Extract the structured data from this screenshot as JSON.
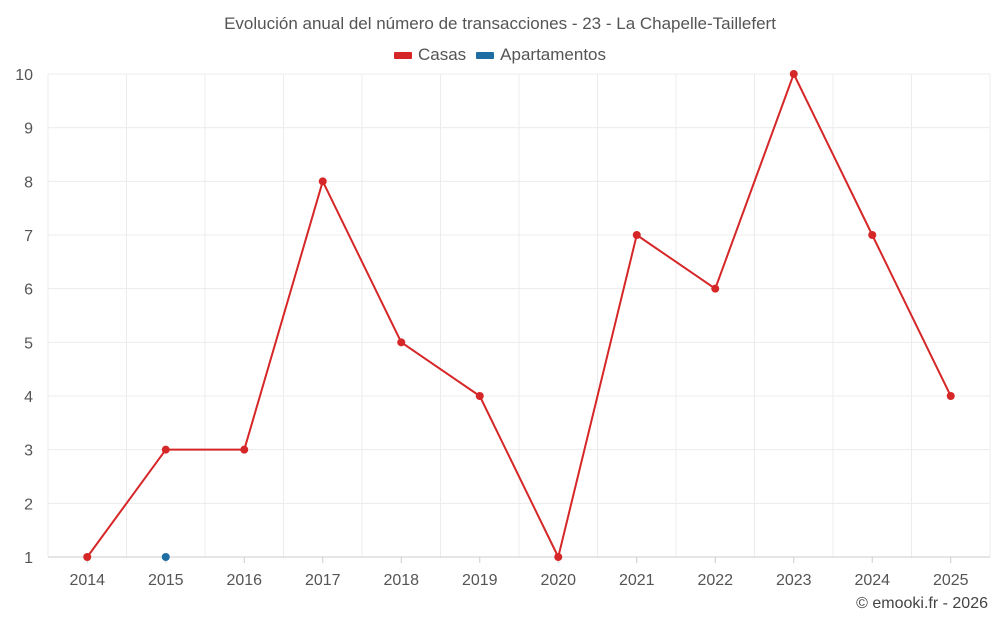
{
  "chart_data": {
    "type": "line",
    "title": "Evolución anual del número de transacciones - 23 - La Chapelle-Taillefert",
    "categories": [
      "2014",
      "2015",
      "2016",
      "2017",
      "2018",
      "2019",
      "2020",
      "2021",
      "2022",
      "2023",
      "2024",
      "2025"
    ],
    "yticks": [
      "1",
      "2",
      "3",
      "4",
      "5",
      "6",
      "7",
      "8",
      "9",
      "10"
    ],
    "ylim": [
      1,
      10
    ],
    "xlabel": "",
    "ylabel": "",
    "grid": true,
    "legend_position": "top-center",
    "series": [
      {
        "name": "Casas",
        "color": "#d62728",
        "values": [
          1,
          3,
          3,
          8,
          5,
          4,
          1,
          7,
          6,
          10,
          7,
          4
        ]
      },
      {
        "name": "Apartamentos",
        "color": "#1f6ea3",
        "values": [
          null,
          1,
          null,
          null,
          null,
          null,
          null,
          null,
          null,
          null,
          null,
          null
        ]
      }
    ]
  },
  "footer": {
    "credit": "© emooki.fr - 2026"
  }
}
